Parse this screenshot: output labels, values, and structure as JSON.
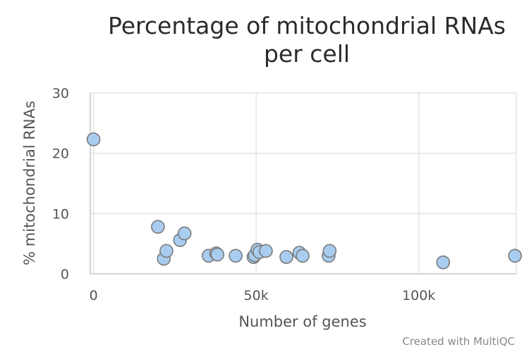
{
  "chart_data": {
    "type": "scatter",
    "title": "Percentage of mitochondrial RNAs",
    "subtitle": "per cell",
    "xlabel": "Number of genes",
    "ylabel": "% mitochondrial RNAs",
    "xlim": [
      -1000,
      130000
    ],
    "ylim": [
      0,
      30
    ],
    "x_ticks": [
      0,
      50000,
      100000
    ],
    "x_tick_labels": [
      "0",
      "50k",
      "100k"
    ],
    "y_ticks": [
      0,
      10,
      20,
      30
    ],
    "y_tick_labels": [
      "0",
      "10",
      "20",
      "30"
    ],
    "grid": true,
    "point_color": "#a9cdf0",
    "point_stroke": "#7a7a7a",
    "points": [
      {
        "x": 0,
        "y": 22.3
      },
      {
        "x": 19800,
        "y": 7.8
      },
      {
        "x": 21600,
        "y": 2.5
      },
      {
        "x": 22400,
        "y": 3.8
      },
      {
        "x": 26600,
        "y": 5.6
      },
      {
        "x": 28000,
        "y": 6.7
      },
      {
        "x": 35400,
        "y": 3.0
      },
      {
        "x": 37700,
        "y": 3.4
      },
      {
        "x": 38100,
        "y": 3.2
      },
      {
        "x": 43700,
        "y": 3.0
      },
      {
        "x": 49200,
        "y": 2.8
      },
      {
        "x": 49600,
        "y": 3.1
      },
      {
        "x": 50400,
        "y": 4.0
      },
      {
        "x": 51000,
        "y": 3.6
      },
      {
        "x": 53000,
        "y": 3.8
      },
      {
        "x": 59300,
        "y": 2.8
      },
      {
        "x": 63300,
        "y": 3.5
      },
      {
        "x": 64300,
        "y": 3.0
      },
      {
        "x": 72300,
        "y": 3.0
      },
      {
        "x": 72600,
        "y": 3.8
      },
      {
        "x": 107500,
        "y": 1.9
      },
      {
        "x": 129600,
        "y": 3.0
      }
    ]
  },
  "credits": "Created with MultiQC"
}
